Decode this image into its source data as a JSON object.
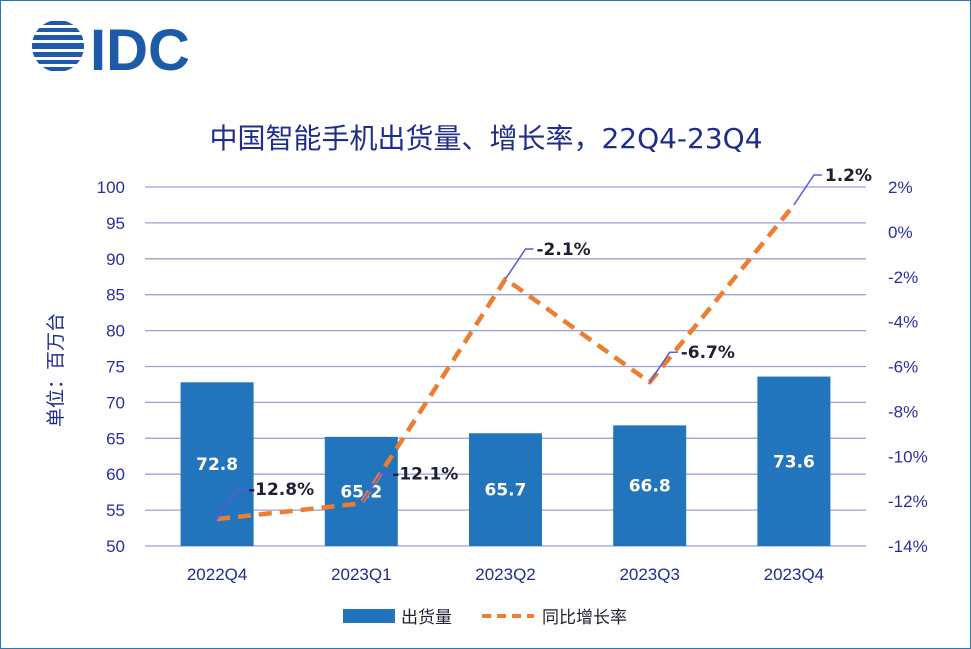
{
  "brand": {
    "logo_text": "IDC",
    "logo_color": "#1d5aa8"
  },
  "chart_data": {
    "type": "bar",
    "title": "中国智能手机出货量、增长率，22Q4-23Q4",
    "ylabel": "单位：百万台",
    "categories": [
      "2022Q4",
      "2023Q1",
      "2023Q2",
      "2023Q3",
      "2023Q4"
    ],
    "series": [
      {
        "name": "出货量",
        "type": "bar",
        "axis": "left",
        "values": [
          72.8,
          65.2,
          65.7,
          66.8,
          73.6
        ],
        "labels": [
          "72.8",
          "65.2",
          "65.7",
          "66.8",
          "73.6"
        ],
        "color": "#2274bd"
      },
      {
        "name": "同比增长率",
        "type": "line",
        "style": "dashed",
        "axis": "right",
        "values": [
          -12.8,
          -12.1,
          -2.1,
          -6.7,
          1.2
        ],
        "labels": [
          "-12.8%",
          "-12.1%",
          "-2.1%",
          "-6.7%",
          "1.2%"
        ],
        "color": "#ed7d31"
      }
    ],
    "left_axis": {
      "ylim": [
        50,
        100
      ],
      "ticks": [
        "50",
        "55",
        "60",
        "65",
        "70",
        "75",
        "80",
        "85",
        "90",
        "95",
        "100"
      ]
    },
    "right_axis": {
      "ylim": [
        -14,
        2
      ],
      "ticks": [
        "-14%",
        "-12%",
        "-10%",
        "-8%",
        "-6%",
        "-4%",
        "-2%",
        "0%",
        "2%"
      ]
    },
    "grid": true,
    "legend_position": "bottom",
    "colors": {
      "gridline": "#9aa0dc",
      "axis_text": "#2a2f9e",
      "title": "#1f2d8c",
      "leader": "#5b5bd6"
    }
  }
}
